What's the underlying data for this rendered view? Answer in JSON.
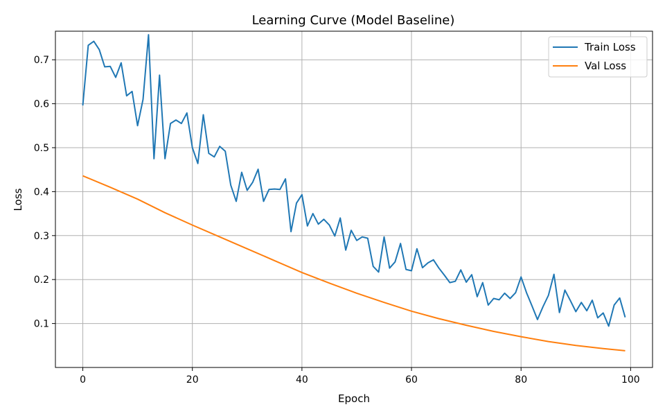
{
  "chart_data": {
    "type": "line",
    "title": "Learning Curve (Model Baseline)",
    "xlabel": "Epoch",
    "ylabel": "Loss",
    "xlim": [
      -5,
      104
    ],
    "ylim": [
      0.0,
      0.765
    ],
    "xticks": [
      0,
      20,
      40,
      60,
      80,
      100
    ],
    "yticks": [
      0.1,
      0.2,
      0.3,
      0.4,
      0.5,
      0.6,
      0.7
    ],
    "grid": true,
    "legend_position": "top-right",
    "series": [
      {
        "name": "Train Loss",
        "color": "#1f77b4",
        "x": [
          0,
          1,
          2,
          3,
          4,
          5,
          6,
          7,
          8,
          9,
          10,
          11,
          12,
          13,
          14,
          15,
          16,
          17,
          18,
          19,
          20,
          21,
          22,
          23,
          24,
          25,
          26,
          27,
          28,
          29,
          30,
          31,
          32,
          33,
          34,
          35,
          36,
          37,
          38,
          39,
          40,
          41,
          42,
          43,
          44,
          45,
          46,
          47,
          48,
          49,
          50,
          51,
          52,
          53,
          54,
          55,
          56,
          57,
          58,
          59,
          60,
          61,
          62,
          63,
          64,
          65,
          66,
          67,
          68,
          69,
          70,
          71,
          72,
          73,
          74,
          75,
          76,
          77,
          78,
          79,
          80,
          81,
          82,
          83,
          84,
          85,
          86,
          87,
          88,
          89,
          90,
          91,
          92,
          93,
          94,
          95,
          96,
          97,
          98,
          99
        ],
        "values": [
          0.596,
          0.733,
          0.742,
          0.723,
          0.684,
          0.685,
          0.66,
          0.693,
          0.618,
          0.628,
          0.55,
          0.61,
          0.757,
          0.475,
          0.665,
          0.475,
          0.555,
          0.563,
          0.555,
          0.579,
          0.5,
          0.464,
          0.575,
          0.487,
          0.479,
          0.503,
          0.492,
          0.415,
          0.378,
          0.444,
          0.403,
          0.421,
          0.451,
          0.378,
          0.405,
          0.406,
          0.405,
          0.429,
          0.309,
          0.374,
          0.393,
          0.322,
          0.35,
          0.326,
          0.337,
          0.324,
          0.299,
          0.34,
          0.267,
          0.312,
          0.289,
          0.297,
          0.294,
          0.23,
          0.217,
          0.297,
          0.226,
          0.24,
          0.282,
          0.223,
          0.22,
          0.27,
          0.227,
          0.238,
          0.245,
          0.226,
          0.21,
          0.193,
          0.196,
          0.222,
          0.194,
          0.211,
          0.161,
          0.193,
          0.142,
          0.157,
          0.154,
          0.169,
          0.157,
          0.17,
          0.206,
          0.17,
          0.14,
          0.109,
          0.138,
          0.164,
          0.212,
          0.125,
          0.176,
          0.152,
          0.127,
          0.148,
          0.129,
          0.153,
          0.113,
          0.124,
          0.094,
          0.142,
          0.158,
          0.114
        ]
      },
      {
        "name": "Val Loss",
        "color": "#ff7f0e",
        "x": [
          0,
          5,
          10,
          15,
          20,
          25,
          30,
          35,
          40,
          45,
          50,
          55,
          60,
          65,
          70,
          75,
          80,
          85,
          90,
          95,
          99
        ],
        "values": [
          0.436,
          0.41,
          0.383,
          0.352,
          0.324,
          0.297,
          0.27,
          0.243,
          0.216,
          0.192,
          0.169,
          0.148,
          0.128,
          0.111,
          0.096,
          0.082,
          0.07,
          0.059,
          0.05,
          0.043,
          0.038
        ]
      }
    ]
  }
}
